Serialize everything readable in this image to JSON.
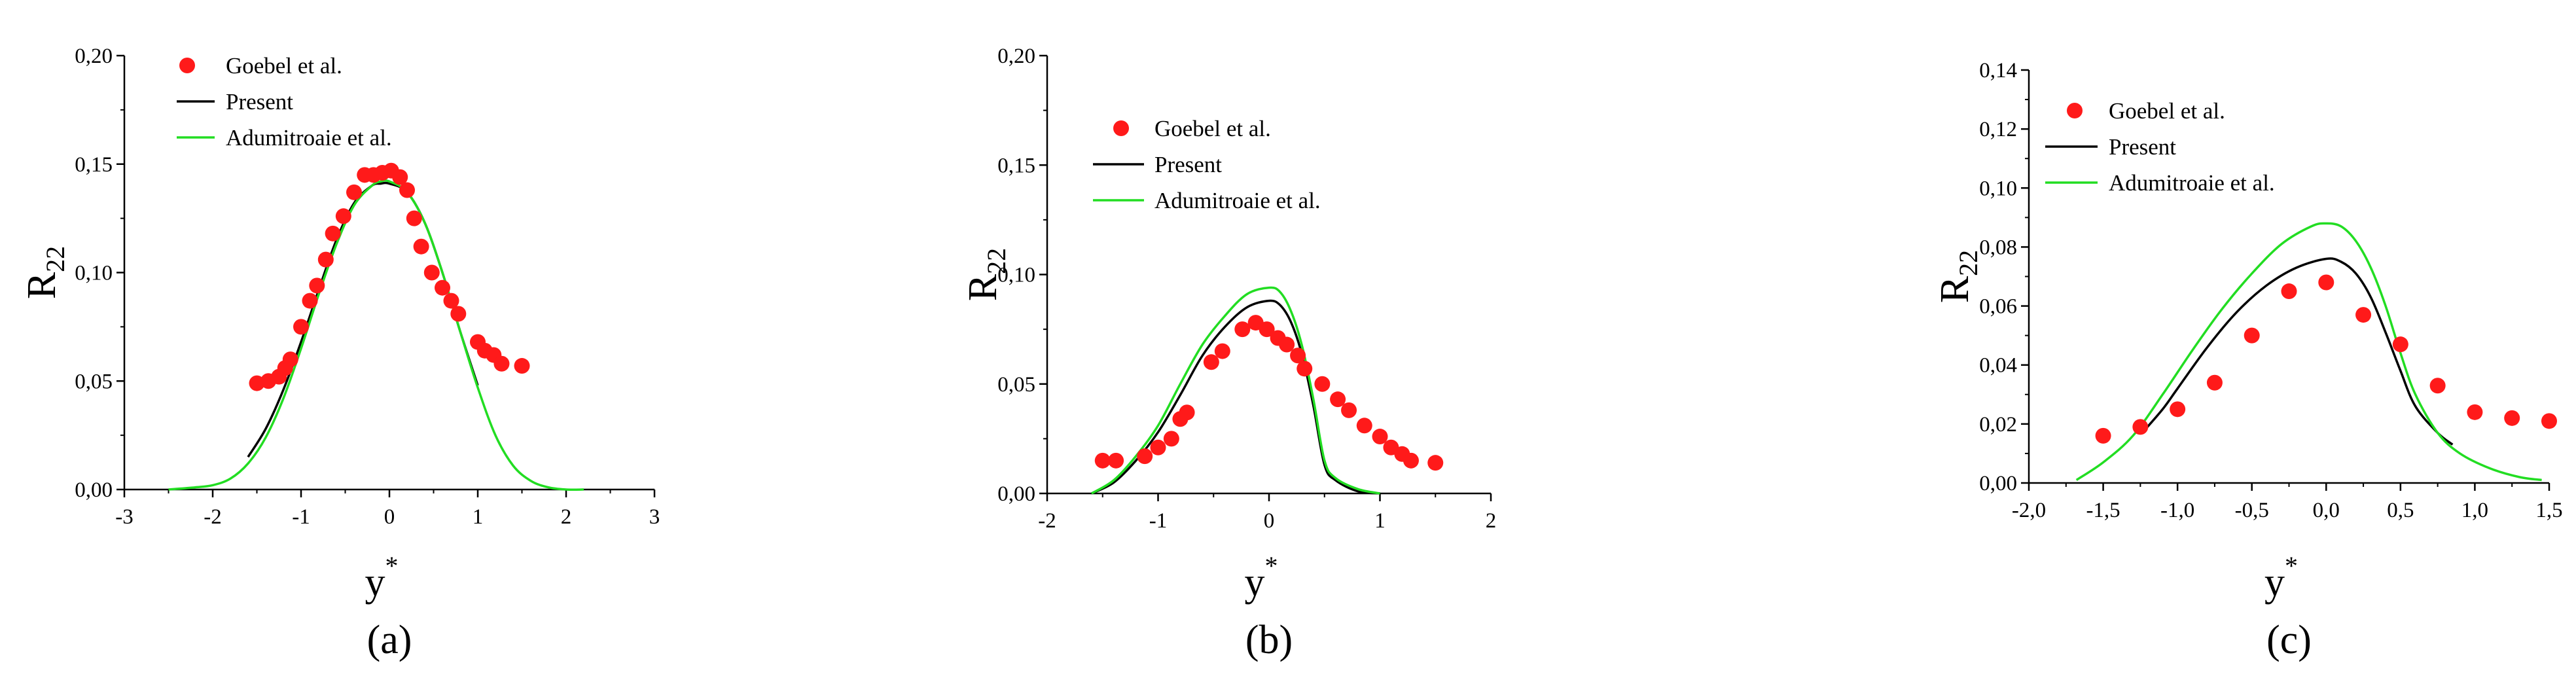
{
  "colors": {
    "axis": "#000000",
    "goebel": "#ff1a1a",
    "present": "#000000",
    "adumitroaie": "#22dd22"
  },
  "chart_data": [
    {
      "type": "scatter+line",
      "caption": "(a)",
      "ylabel": "R",
      "ylabel_sub": "22",
      "xlabel": "y",
      "xlabel_sup": "*",
      "xlim": [
        -3,
        3
      ],
      "ylim": [
        0,
        0.2
      ],
      "x_ticks": [
        -3,
        -2,
        -1,
        0,
        1,
        2,
        3
      ],
      "x_tick_labels": [
        "-3",
        "-2",
        "-1",
        "0",
        "1",
        "2",
        "3"
      ],
      "y_ticks": [
        0,
        0.05,
        0.1,
        0.15,
        0.2
      ],
      "y_tick_labels": [
        "0,00",
        "0,05",
        "0,10",
        "0,15",
        "0,20"
      ],
      "legend": {
        "placement": "top-left",
        "entries": [
          "Goebel et al.",
          "Present",
          "Adumitroaie et al."
        ]
      },
      "series": [
        {
          "name": "Goebel et al.",
          "kind": "markers",
          "x": [
            -1.5,
            -1.37,
            -1.25,
            -1.18,
            -1.12,
            -1.0,
            -0.9,
            -0.82,
            -0.72,
            -0.64,
            -0.52,
            -0.4,
            -0.28,
            -0.18,
            -0.08,
            0.02,
            0.12,
            0.2,
            0.28,
            0.36,
            0.48,
            0.6,
            0.7,
            0.78,
            1.0,
            1.08,
            1.18,
            1.27,
            1.5
          ],
          "y": [
            0.049,
            0.05,
            0.052,
            0.056,
            0.06,
            0.075,
            0.087,
            0.094,
            0.106,
            0.118,
            0.126,
            0.137,
            0.145,
            0.145,
            0.146,
            0.147,
            0.144,
            0.138,
            0.125,
            0.112,
            0.1,
            0.093,
            0.087,
            0.081,
            0.068,
            0.064,
            0.062,
            0.058,
            0.057
          ]
        },
        {
          "name": "Present",
          "kind": "line",
          "x": [
            -1.6,
            -1.4,
            -1.2,
            -1.0,
            -0.8,
            -0.6,
            -0.4,
            -0.2,
            -0.1,
            0.0,
            0.2,
            0.4,
            0.6,
            0.8,
            1.0
          ],
          "y": [
            0.015,
            0.028,
            0.046,
            0.068,
            0.092,
            0.115,
            0.132,
            0.14,
            0.141,
            0.141,
            0.137,
            0.123,
            0.1,
            0.073,
            0.048
          ]
        },
        {
          "name": "Adumitroaie et al.",
          "kind": "line",
          "x": [
            -2.5,
            -2.2,
            -2.0,
            -1.8,
            -1.6,
            -1.4,
            -1.2,
            -1.0,
            -0.8,
            -0.6,
            -0.4,
            -0.2,
            -0.1,
            0.0,
            0.2,
            0.4,
            0.6,
            0.8,
            1.0,
            1.2,
            1.4,
            1.6,
            1.8,
            2.0,
            2.2
          ],
          "y": [
            0.0,
            0.001,
            0.002,
            0.005,
            0.012,
            0.024,
            0.042,
            0.065,
            0.09,
            0.113,
            0.131,
            0.14,
            0.142,
            0.142,
            0.137,
            0.123,
            0.1,
            0.073,
            0.047,
            0.025,
            0.011,
            0.004,
            0.001,
            0.0,
            0.0
          ]
        }
      ]
    },
    {
      "type": "scatter+line",
      "caption": "(b)",
      "ylabel": "R",
      "ylabel_sub": "22",
      "xlabel": "y",
      "xlabel_sup": "*",
      "xlim": [
        -2,
        2
      ],
      "ylim": [
        0,
        0.2
      ],
      "x_ticks": [
        -2,
        -1,
        0,
        1,
        2
      ],
      "x_tick_labels": [
        "-2",
        "-1",
        "0",
        "1",
        "2"
      ],
      "y_ticks": [
        0,
        0.05,
        0.1,
        0.15,
        0.2
      ],
      "y_tick_labels": [
        "0,00",
        "0,05",
        "0,10",
        "0,15",
        "0,20"
      ],
      "legend": {
        "placement": "top-left",
        "entries": [
          "Goebel et al.",
          "Present",
          "Adumitroaie et al."
        ]
      },
      "series": [
        {
          "name": "Goebel et al.",
          "kind": "markers",
          "x": [
            -1.5,
            -1.38,
            -1.12,
            -1.0,
            -0.88,
            -0.8,
            -0.74,
            -0.52,
            -0.42,
            -0.24,
            -0.12,
            -0.02,
            0.08,
            0.16,
            0.26,
            0.32,
            0.48,
            0.62,
            0.72,
            0.86,
            1.0,
            1.1,
            1.2,
            1.28,
            1.5
          ],
          "y": [
            0.015,
            0.015,
            0.017,
            0.021,
            0.025,
            0.034,
            0.037,
            0.06,
            0.065,
            0.075,
            0.078,
            0.075,
            0.071,
            0.068,
            0.063,
            0.057,
            0.05,
            0.043,
            0.038,
            0.031,
            0.026,
            0.021,
            0.018,
            0.015,
            0.014
          ]
        },
        {
          "name": "Present",
          "kind": "line",
          "x": [
            -1.6,
            -1.4,
            -1.2,
            -1.0,
            -0.8,
            -0.6,
            -0.4,
            -0.2,
            0.0,
            0.1,
            0.2,
            0.3,
            0.4,
            0.5,
            0.6,
            0.8,
            1.0
          ],
          "y": [
            0.0,
            0.005,
            0.015,
            0.028,
            0.045,
            0.063,
            0.076,
            0.085,
            0.088,
            0.086,
            0.078,
            0.063,
            0.04,
            0.013,
            0.006,
            0.001,
            0.0
          ]
        },
        {
          "name": "Adumitroaie et al.",
          "kind": "line",
          "x": [
            -1.6,
            -1.4,
            -1.2,
            -1.0,
            -0.8,
            -0.6,
            -0.4,
            -0.2,
            0.0,
            0.1,
            0.2,
            0.3,
            0.4,
            0.5,
            0.6,
            0.8,
            1.0
          ],
          "y": [
            0.0,
            0.006,
            0.017,
            0.031,
            0.05,
            0.068,
            0.081,
            0.091,
            0.094,
            0.092,
            0.083,
            0.067,
            0.043,
            0.015,
            0.007,
            0.002,
            0.0
          ]
        }
      ]
    },
    {
      "type": "scatter+line",
      "caption": "(c)",
      "ylabel": "R",
      "ylabel_sub": "22",
      "xlabel": "y",
      "xlabel_sup": "*",
      "xlim": [
        -2.0,
        1.5
      ],
      "ylim": [
        0,
        0.14
      ],
      "x_ticks": [
        -2.0,
        -1.5,
        -1.0,
        -0.5,
        0.0,
        0.5,
        1.0,
        1.5
      ],
      "x_tick_labels": [
        "-2,0",
        "-1,5",
        "-1,0",
        "-0,5",
        "0,0",
        "0,5",
        "1,0",
        "1,5"
      ],
      "y_ticks": [
        0,
        0.02,
        0.04,
        0.06,
        0.08,
        0.1,
        0.12,
        0.14
      ],
      "y_tick_labels": [
        "0,00",
        "0,02",
        "0,04",
        "0,06",
        "0,08",
        "0,10",
        "0,12",
        "0,14"
      ],
      "legend": {
        "placement": "top-left",
        "entries": [
          "Goebel et al.",
          "Present",
          "Adumitroaie et al."
        ]
      },
      "series": [
        {
          "name": "Goebel et al.",
          "kind": "markers",
          "x": [
            -1.5,
            -1.25,
            -1.0,
            -0.75,
            -0.5,
            -0.25,
            0.0,
            0.25,
            0.5,
            0.75,
            1.0,
            1.25,
            1.5
          ],
          "y": [
            0.016,
            0.019,
            0.025,
            0.034,
            0.05,
            0.065,
            0.068,
            0.057,
            0.047,
            0.033,
            0.024,
            0.022,
            0.021
          ]
        },
        {
          "name": "Present",
          "kind": "line",
          "x": [
            -1.22,
            -1.1,
            -1.0,
            -0.8,
            -0.6,
            -0.4,
            -0.2,
            0.0,
            0.1,
            0.2,
            0.3,
            0.4,
            0.5,
            0.6,
            0.75,
            0.85
          ],
          "y": [
            0.018,
            0.025,
            0.032,
            0.046,
            0.058,
            0.067,
            0.073,
            0.076,
            0.075,
            0.071,
            0.063,
            0.051,
            0.038,
            0.026,
            0.017,
            0.013
          ]
        },
        {
          "name": "Adumitroaie et al.",
          "kind": "line",
          "x": [
            -1.68,
            -1.5,
            -1.3,
            -1.1,
            -0.9,
            -0.7,
            -0.5,
            -0.3,
            -0.1,
            0.0,
            0.1,
            0.2,
            0.3,
            0.4,
            0.5,
            0.6,
            0.75,
            0.9,
            1.1,
            1.3,
            1.45
          ],
          "y": [
            0.001,
            0.007,
            0.016,
            0.03,
            0.045,
            0.059,
            0.071,
            0.081,
            0.087,
            0.088,
            0.087,
            0.082,
            0.073,
            0.06,
            0.044,
            0.03,
            0.017,
            0.01,
            0.005,
            0.002,
            0.001
          ]
        }
      ]
    }
  ]
}
